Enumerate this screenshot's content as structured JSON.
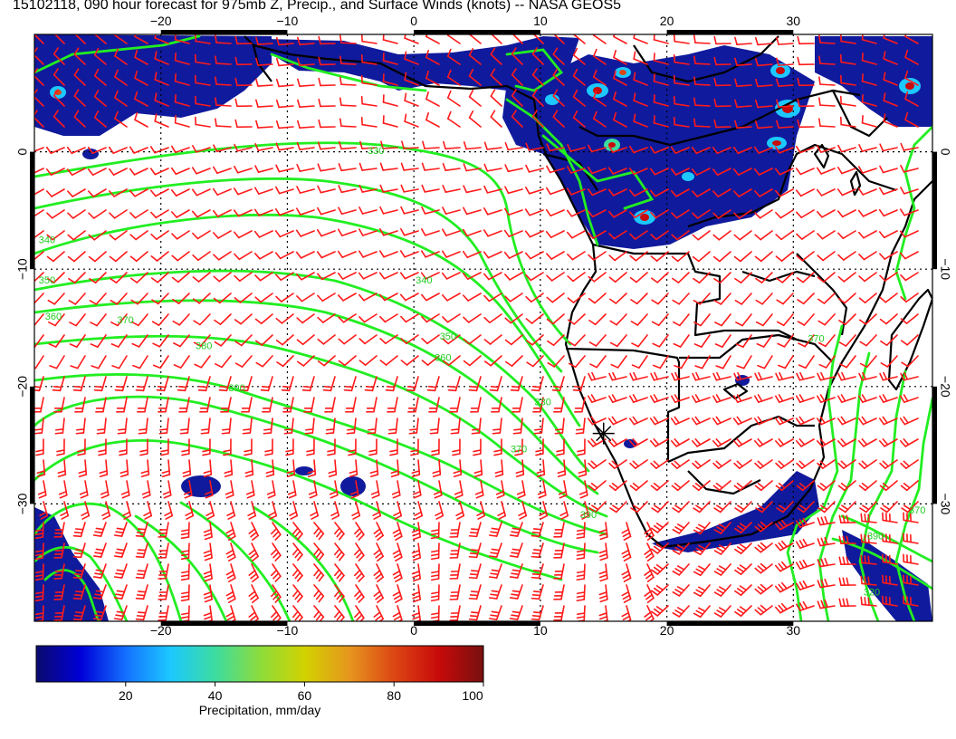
{
  "title": "15102118, 090 hour forecast for 975mb Z, Precip., and Surface Winds (knots) -- NASA GEOS5",
  "map": {
    "lon_range": [
      -30,
      41
    ],
    "lat_range": [
      -40,
      10
    ],
    "lon_ticks": [
      {
        "value": -20,
        "label": "−20"
      },
      {
        "value": -10,
        "label": "−10"
      },
      {
        "value": 0,
        "label": "0"
      },
      {
        "value": 10,
        "label": "10"
      },
      {
        "value": 20,
        "label": "20"
      },
      {
        "value": 30,
        "label": "30"
      }
    ],
    "lat_ticks": [
      {
        "value": 0,
        "label": "0"
      },
      {
        "value": -10,
        "label": "−10"
      },
      {
        "value": -20,
        "label": "−20"
      },
      {
        "value": -30,
        "label": "−30"
      }
    ],
    "grid": "dotted",
    "marker": {
      "lon": 15,
      "lat": -24
    },
    "contour_color": "#22ee22",
    "barb_color": "#ff1a1a",
    "contour_labels": [
      {
        "text": "330",
        "lon": -3.0,
        "lat": -0.2
      },
      {
        "text": "340",
        "lon": -29.0,
        "lat": -7.8
      },
      {
        "text": "350",
        "lon": -29.0,
        "lat": -11.2
      },
      {
        "text": "360",
        "lon": -28.5,
        "lat": -14.3
      },
      {
        "text": "370",
        "lon": -22.8,
        "lat": -14.6
      },
      {
        "text": "380",
        "lon": -16.6,
        "lat": -16.8
      },
      {
        "text": "390",
        "lon": -14.0,
        "lat": -20.4
      },
      {
        "text": "340",
        "lon": 0.8,
        "lat": -11.2
      },
      {
        "text": "350",
        "lon": 2.7,
        "lat": -16.0
      },
      {
        "text": "360",
        "lon": 2.3,
        "lat": -17.8
      },
      {
        "text": "330",
        "lon": 10.2,
        "lat": -21.6
      },
      {
        "text": "370",
        "lon": 8.3,
        "lat": -25.6
      },
      {
        "text": "390",
        "lon": 13.8,
        "lat": -31.2
      },
      {
        "text": "370",
        "lon": 31.8,
        "lat": -16.2
      },
      {
        "text": "370",
        "lon": 39.8,
        "lat": -30.8
      },
      {
        "text": "390",
        "lon": 36.5,
        "lat": -33.0
      },
      {
        "text": "320",
        "lon": 36.2,
        "lat": -37.8
      }
    ]
  },
  "colorbar": {
    "label": "Precipitation, mm/day",
    "min": 0,
    "max": 100,
    "ticks": [
      20,
      40,
      60,
      80,
      100
    ],
    "colors": [
      "#0a0a6e",
      "#0000d8",
      "#1470ff",
      "#1cc8ff",
      "#3cdca0",
      "#8cdc3c",
      "#d2d200",
      "#e6961e",
      "#dc4614",
      "#c80a0a",
      "#781010"
    ]
  }
}
